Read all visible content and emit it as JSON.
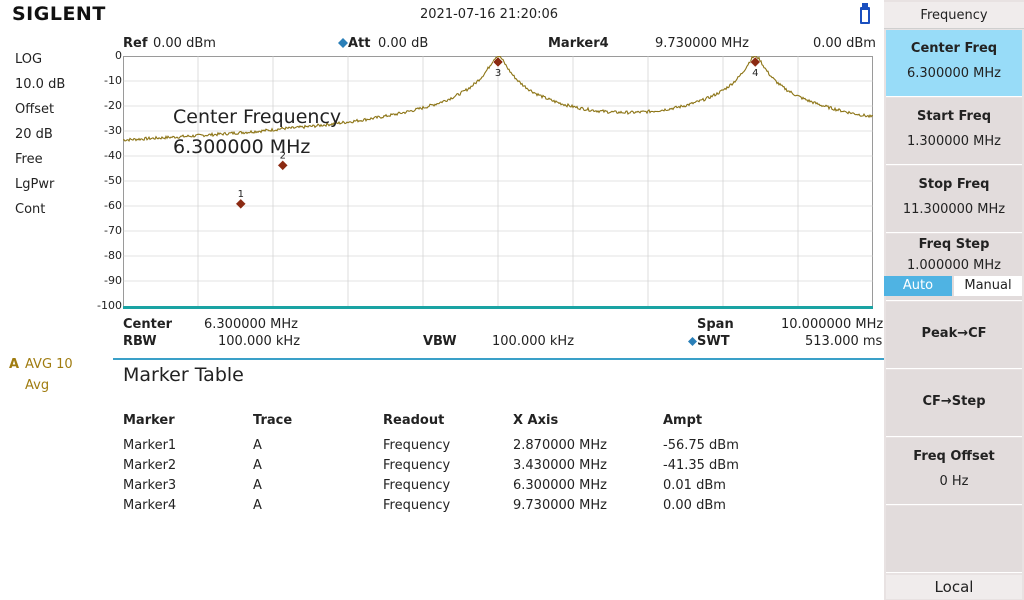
{
  "brand": "SIGLENT",
  "datetime": "2021-07-16   21:20:06",
  "left_panel": {
    "scale_type": "LOG",
    "scale_div": "10.0 dB",
    "offset_label": "Offset",
    "offset_value": "20 dB",
    "trigger": "Free",
    "detector": "LgPwr",
    "sweep_mode": "Cont",
    "trace_label": "A",
    "trace_avg": "AVG 10",
    "trace_mode": "Avg"
  },
  "header": {
    "ref_label": "Ref",
    "ref_value": "0.00 dBm",
    "att_label": "Att",
    "att_value": "0.00 dB",
    "marker_label": "Marker4",
    "marker_freq": "9.730000 MHz",
    "marker_ampt": "0.00 dBm"
  },
  "y_ticks": [
    "0",
    "-10",
    "-20",
    "-30",
    "-40",
    "-50",
    "-60",
    "-70",
    "-80",
    "-90",
    "-100"
  ],
  "annotation": {
    "line1": "Center Frequency",
    "line2": "6.300000 MHz"
  },
  "marker_labels": [
    "1",
    "2",
    "3",
    "4"
  ],
  "footer": {
    "center_label": "Center",
    "center_value": "6.300000 MHz",
    "span_label": "Span",
    "span_value": "10.000000 MHz",
    "rbw_label": "RBW",
    "rbw_value": "100.000 kHz",
    "vbw_label": "VBW",
    "vbw_value": "100.000 kHz",
    "swt_label": "SWT",
    "swt_value": "513.000 ms"
  },
  "marker_table": {
    "title": "Marker Table",
    "headers": [
      "Marker",
      "Trace",
      "Readout",
      "X Axis",
      "Ampt"
    ],
    "rows": [
      [
        "Marker1",
        "A",
        "Frequency",
        "2.870000 MHz",
        "-56.75 dBm"
      ],
      [
        "Marker2",
        "A",
        "Frequency",
        "3.430000 MHz",
        "-41.35 dBm"
      ],
      [
        "Marker3",
        "A",
        "Frequency",
        "6.300000 MHz",
        "0.01 dBm"
      ],
      [
        "Marker4",
        "A",
        "Frequency",
        "9.730000 MHz",
        "0.00 dBm"
      ]
    ]
  },
  "sidebar": {
    "title": "Frequency",
    "center_freq_label": "Center Freq",
    "center_freq_value": "6.300000 MHz",
    "start_freq_label": "Start Freq",
    "start_freq_value": "1.300000 MHz",
    "stop_freq_label": "Stop Freq",
    "stop_freq_value": "11.300000 MHz",
    "freq_step_label": "Freq Step",
    "freq_step_value": "1.000000 MHz",
    "auto_label": "Auto",
    "manual_label": "Manual",
    "peak_cf_label": "Peak→CF",
    "cf_step_label": "CF→Step",
    "freq_offset_label": "Freq Offset",
    "freq_offset_value": "0 Hz",
    "local_label": "Local"
  },
  "colors": {
    "trace": "#8c7415",
    "grid": "#c8c8c8",
    "active_button": "#98dcf8",
    "marker": "#8b2a12",
    "teal_line": "#1aa3a3"
  }
}
